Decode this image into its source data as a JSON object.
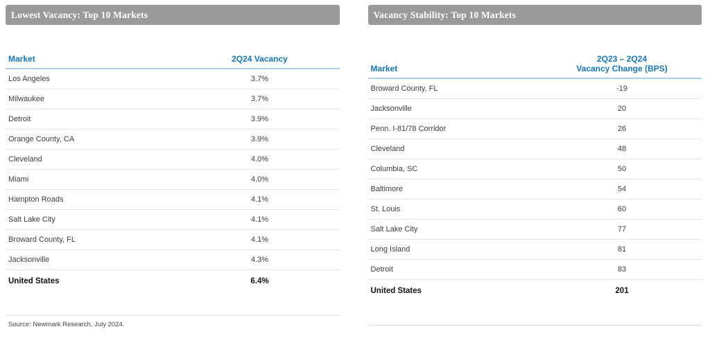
{
  "colors": {
    "title_bar_bg": "#9a9a9a",
    "title_bar_text": "#ffffff",
    "header_blue": "#1576bd",
    "header_underline_blue": "#a9cde9",
    "row_divider": "#e4e4e4"
  },
  "panels": [
    {
      "title": "Lowest Vacancy: Top 10 Markets",
      "market_header": "Market",
      "value_header": "2Q24 Vacancy",
      "rows": [
        {
          "market": "Los Angeles",
          "value": "3.7%"
        },
        {
          "market": "Milwaukee",
          "value": "3.7%"
        },
        {
          "market": "Detroit",
          "value": "3.9%"
        },
        {
          "market": "Orange County, CA",
          "value": "3.9%"
        },
        {
          "market": "Cleveland",
          "value": "4.0%"
        },
        {
          "market": "Miami",
          "value": "4.0%"
        },
        {
          "market": "Hampton Roads",
          "value": "4.1%"
        },
        {
          "market": "Salt Lake City",
          "value": "4.1%"
        },
        {
          "market": "Broward County, FL",
          "value": "4.1%"
        },
        {
          "market": "Jacksonville",
          "value": "4.3%"
        }
      ],
      "total": {
        "market": "United States",
        "value": "6.4%"
      }
    },
    {
      "title": "Vacancy Stability: Top 10 Markets",
      "market_header": "Market",
      "value_header_line1": "2Q23 – 2Q24",
      "value_header_line2": "Vacancy Change (BPS)",
      "rows": [
        {
          "market": "Broward County, FL",
          "value": "-19"
        },
        {
          "market": "Jacksonville",
          "value": "20"
        },
        {
          "market": "Penn. I-81/78 Corridor",
          "value": "26"
        },
        {
          "market": "Cleveland",
          "value": "48"
        },
        {
          "market": "Columbia, SC",
          "value": "50"
        },
        {
          "market": "Baltimore",
          "value": "54"
        },
        {
          "market": "St. Louis",
          "value": "60"
        },
        {
          "market": "Salt Lake City",
          "value": "77"
        },
        {
          "market": "Long Island",
          "value": "81"
        },
        {
          "market": "Detroit",
          "value": "83"
        }
      ],
      "total": {
        "market": "United States",
        "value": "201"
      }
    }
  ],
  "source": "Source: Newmark Research, July 2024."
}
